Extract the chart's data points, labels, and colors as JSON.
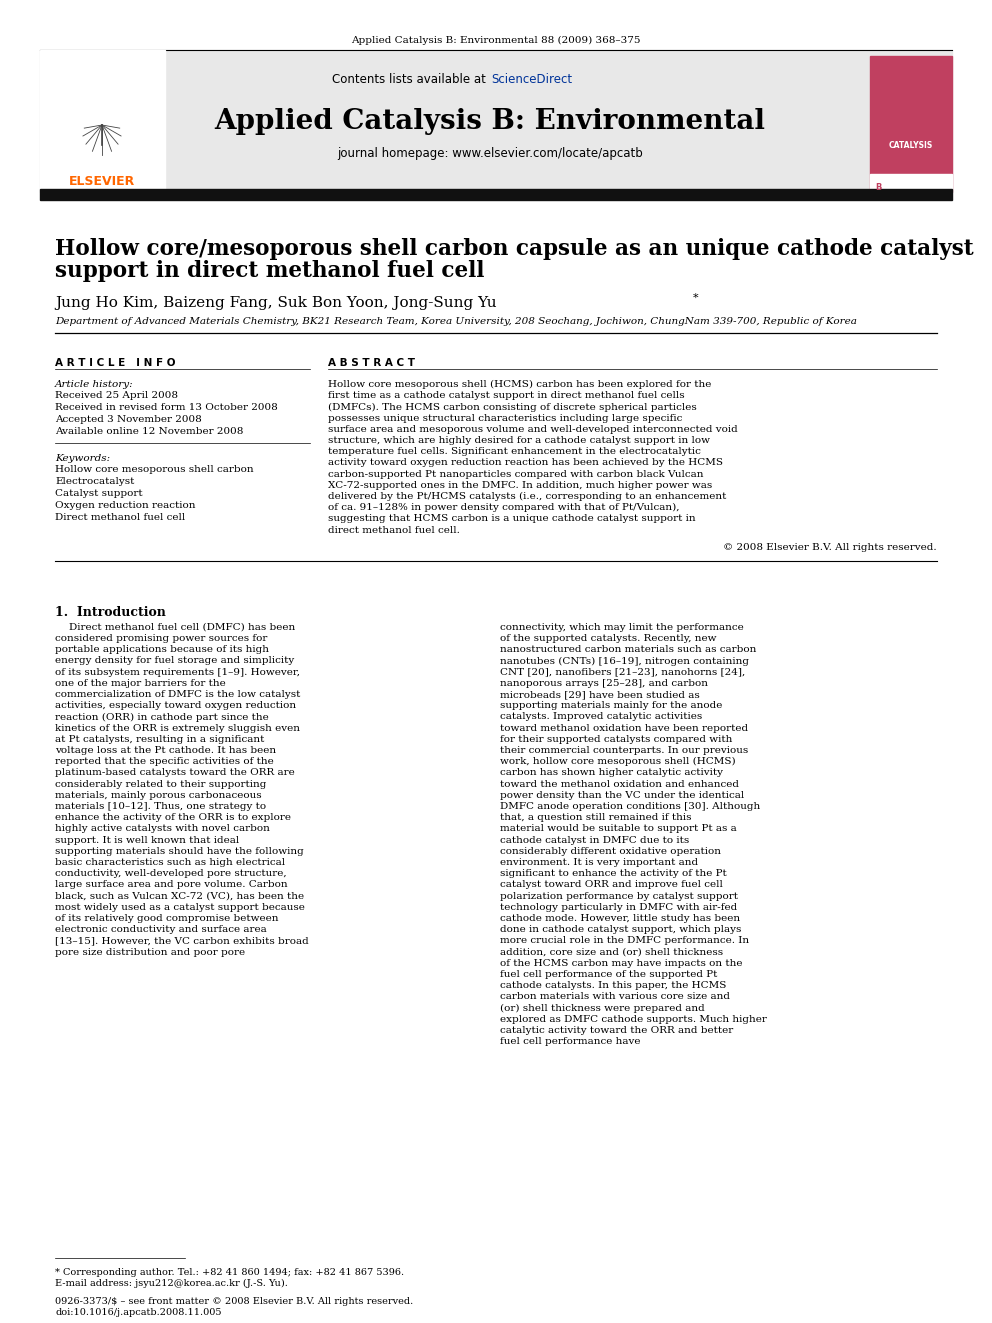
{
  "page_header": "Applied Catalysis B: Environmental 88 (2009) 368–375",
  "journal_name": "Applied Catalysis B: Environmental",
  "journal_homepage": "journal homepage: www.elsevier.com/locate/apcatb",
  "contents_line": "Contents lists available at",
  "sciencedirect_text": "ScienceDirect",
  "sciencedirect_color": "#003399",
  "elsevier_orange": "#FF6600",
  "article_title_line1": "Hollow core/mesoporous shell carbon capsule as an unique cathode catalyst",
  "article_title_line2": "support in direct methanol fuel cell",
  "authors": "Jung Ho Kim, Baizeng Fang, Suk Bon Yoon, Jong-Sung Yu",
  "affiliation": "Department of Advanced Materials Chemistry, BK21 Research Team, Korea University, 208 Seochang, Jochiwon, ChungNam 339-700, Republic of Korea",
  "article_info_header": "ARTICLE INFO",
  "article_history_label": "Article history:",
  "received": "Received 25 April 2008",
  "received_revised": "Received in revised form 13 October 2008",
  "accepted": "Accepted 3 November 2008",
  "available": "Available online 12 November 2008",
  "keywords_label": "Keywords:",
  "keywords": [
    "Hollow core mesoporous shell carbon",
    "Electrocatalyst",
    "Catalyst support",
    "Oxygen reduction reaction",
    "Direct methanol fuel cell"
  ],
  "abstract_header": "ABSTRACT",
  "abstract_text": "Hollow core mesoporous shell (HCMS) carbon has been explored for the first time as a cathode catalyst support in direct methanol fuel cells (DMFCs). The HCMS carbon consisting of discrete spherical particles possesses unique structural characteristics including large specific surface area and mesoporous volume and well-developed interconnected void structure, which are highly desired for a cathode catalyst support in low temperature fuel cells. Significant enhancement in the electrocatalytic activity toward oxygen reduction reaction has been achieved by the HCMS carbon-supported Pt nanoparticles compared with carbon black Vulcan XC-72-supported ones in the DMFC. In addition, much higher power was delivered by the Pt/HCMS catalysts (i.e., corresponding to an enhancement of ca. 91–128% in power density compared with that of Pt/Vulcan), suggesting that HCMS carbon is a unique cathode catalyst support in direct methanol fuel cell.",
  "copyright": "© 2008 Elsevier B.V. All rights reserved.",
  "section1_title": "1.  Introduction",
  "intro_col1": "Direct methanol fuel cell (DMFC) has been considered promising power sources for portable applications because of its high energy density for fuel storage and simplicity of its subsystem requirements [1–9]. However, one of the major barriers for the commercialization of DMFC is the low catalyst activities, especially toward oxygen reduction reaction (ORR) in cathode part since the kinetics of the ORR is extremely sluggish even at Pt catalysts, resulting in a significant voltage loss at the Pt cathode. It has been reported that the specific activities of the platinum-based catalysts toward the ORR are considerably related to their supporting materials, mainly porous carbonaceous materials [10–12]. Thus, one strategy to enhance the activity of the ORR is to explore highly active catalysts with novel carbon support. It is well known that ideal supporting materials should have the following basic characteristics such as high electrical conductivity, well-developed pore structure, large surface area and pore volume. Carbon black, such as Vulcan XC-72 (VC), has been the most widely used as a catalyst support because of its relatively good compromise between electronic conductivity and surface area [13–15]. However, the VC carbon exhibits broad pore size distribution and poor pore",
  "intro_col2": "connectivity, which may limit the performance of the supported catalysts. Recently, new nanostructured carbon materials such as carbon nanotubes (CNTs) [16–19], nitrogen containing CNT [20], nanofibers [21–23], nanohorns [24], nanoporous arrays [25–28], and carbon microbeads [29] have been studied as supporting materials mainly for the anode catalysts. Improved catalytic activities toward methanol oxidation have been reported for their supported catalysts compared with their commercial counterparts. In our previous work, hollow core mesoporous shell (HCMS) carbon has shown higher catalytic activity toward the methanol oxidation and enhanced power density than the VC under the identical DMFC anode operation conditions [30]. Although that, a question still remained if this material would be suitable to support Pt as a cathode catalyst in DMFC due to its considerably different oxidative operation environment. It is very important and significant to enhance the activity of the Pt catalyst toward ORR and improve fuel cell polarization performance by catalyst support technology particularly in DMFC with air-fed cathode mode. However, little study has been done in cathode catalyst support, which plays more crucial role in the DMFC performance. In addition, core size and (or) shell thickness of the HCMS carbon may have impacts on the fuel cell performance of the supported Pt cathode catalysts. In this paper, the HCMS carbon materials with various core size and (or) shell thickness were prepared and explored as DMFC cathode supports. Much higher catalytic activity toward the ORR and better fuel cell performance have",
  "footnote_corresponding": "* Corresponding author. Tel.: +82 41 860 1494; fax: +82 41 867 5396.",
  "footnote_email": "E-mail address: jsyu212@korea.ac.kr (J.-S. Yu).",
  "footer_issn": "0926-3373/$ – see front matter © 2008 Elsevier B.V. All rights reserved.",
  "footer_doi": "doi:10.1016/j.apcatb.2008.11.005",
  "bg_header_color": "#e8e8e8",
  "black_bar_color": "#111111",
  "link_color": "#0000CC"
}
